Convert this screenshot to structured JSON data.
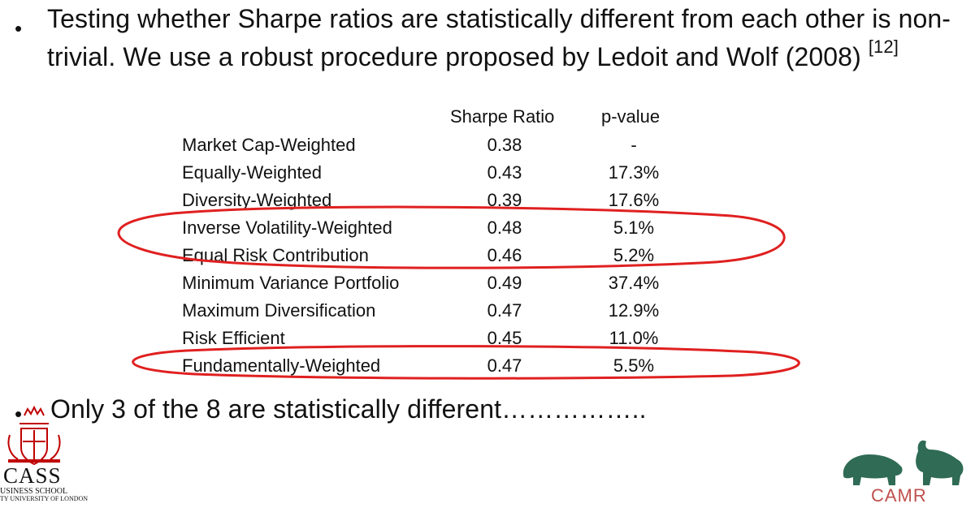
{
  "bullets": [
    {
      "text": "Testing whether Sharpe ratios are statistically different from each other is non-trivial. We use a robust procedure proposed by Ledoit and Wolf (2008)",
      "citation": "[12]"
    },
    {
      "text": "Only 3 of the 8 are statistically different……………..",
      "citation": ""
    }
  ],
  "table": {
    "headers": {
      "sharpe": "Sharpe Ratio",
      "pvalue": "p-value"
    },
    "rows": [
      {
        "name": "Market Cap-Weighted",
        "sharpe": "0.38",
        "pvalue": "-"
      },
      {
        "name": "Equally-Weighted",
        "sharpe": "0.43",
        "pvalue": "17.3%"
      },
      {
        "name": "Diversity-Weighted",
        "sharpe": "0.39",
        "pvalue": "17.6%"
      },
      {
        "name": "Inverse Volatility-Weighted",
        "sharpe": "0.48",
        "pvalue": "5.1%"
      },
      {
        "name": "Equal Risk Contribution",
        "sharpe": "0.46",
        "pvalue": "5.2%"
      },
      {
        "name": "Minimum Variance Portfolio",
        "sharpe": "0.49",
        "pvalue": "37.4%"
      },
      {
        "name": "Maximum Diversification",
        "sharpe": "0.47",
        "pvalue": "12.9%"
      },
      {
        "name": "Risk Efficient",
        "sharpe": "0.45",
        "pvalue": "11.0%"
      },
      {
        "name": "Fundamentally-Weighted",
        "sharpe": "0.47",
        "pvalue": "5.5%"
      }
    ],
    "highlight_color": "#e02020"
  },
  "logos": {
    "cass": {
      "icon": "cass-crest-icon",
      "wordmark": "CASS",
      "line1": "USINESS SCHOOL",
      "line2": "TY UNIVERSITY OF LONDON",
      "color": "#c00000"
    },
    "camr": {
      "icon": "bull-bear-icon",
      "wordmark": "CAMR",
      "color": "#2f6b55"
    }
  }
}
